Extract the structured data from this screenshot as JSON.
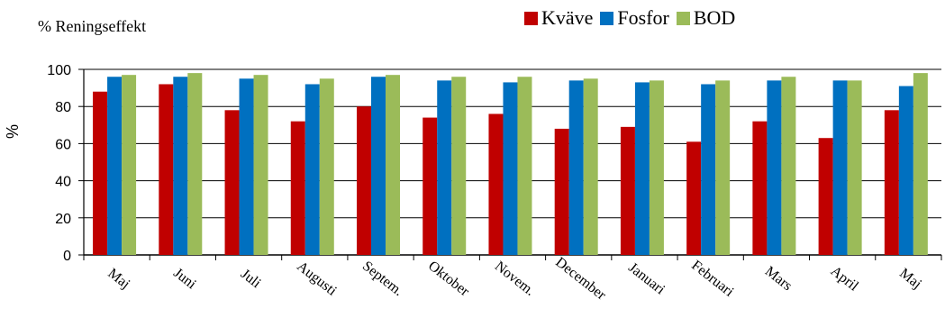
{
  "chart_data": {
    "type": "bar",
    "title": "% Reningseffekt",
    "ylabel": "%",
    "xlabel": "",
    "ylim": [
      0,
      100
    ],
    "yticks": [
      "0",
      "20",
      "40",
      "60",
      "80",
      "100"
    ],
    "grid": "horizontal",
    "legend_position": "top-right",
    "categories": [
      "Maj",
      "Juni",
      "Juli",
      "Augusti",
      "Septem.",
      "Oktober",
      "Novem.",
      "December",
      "Januari",
      "Februari",
      "Mars",
      "April",
      "Maj"
    ],
    "series": [
      {
        "name": "Kväve",
        "color": "#C00000",
        "values": [
          88,
          92,
          78,
          72,
          80,
          74,
          76,
          68,
          69,
          61,
          72,
          63,
          78
        ]
      },
      {
        "name": "Fosfor",
        "color": "#0070C0",
        "values": [
          96,
          96,
          95,
          92,
          96,
          94,
          93,
          94,
          93,
          92,
          94,
          94,
          91
        ]
      },
      {
        "name": "BOD",
        "color": "#9BBB59",
        "values": [
          97,
          98,
          97,
          95,
          97,
          96,
          96,
          95,
          94,
          94,
          96,
          94,
          98
        ]
      }
    ]
  }
}
